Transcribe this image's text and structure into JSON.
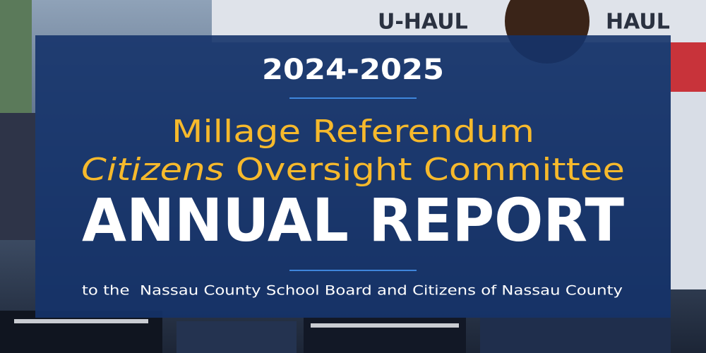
{
  "background": {
    "signs": [
      "U-HAUL",
      "HAUL"
    ]
  },
  "banner": {
    "years": "2024-2025",
    "title_line1": "Millage Referendum",
    "title_line2": {
      "italic": "Citizens",
      "rest": "Oversight Committee"
    },
    "heading": "ANNUAL REPORT",
    "subtitle": "to the  Nassau County School Board and Citizens of Nassau County"
  }
}
